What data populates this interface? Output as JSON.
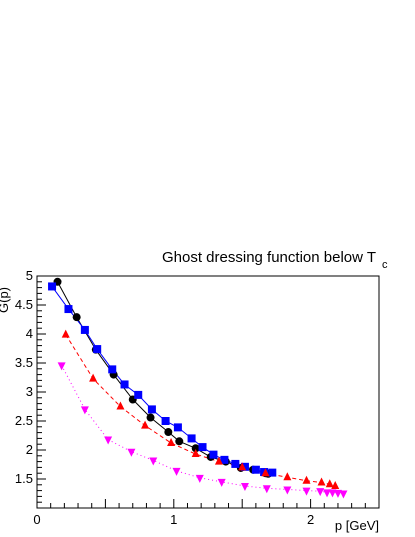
{
  "chart_data": {
    "type": "line",
    "title": "Ghost dressing function below T",
    "title_subscript": "c",
    "xlabel": "p [GeV]",
    "ylabel": "G(p)",
    "xlim": [
      0,
      2.5
    ],
    "ylim": [
      1.0,
      5.0
    ],
    "x_ticks": [
      0,
      1,
      2
    ],
    "y_ticks": [
      1.5,
      2,
      2.5,
      3,
      3.5,
      4,
      4.5,
      5
    ],
    "grid": false,
    "series": [
      {
        "marker": "circle",
        "color": "#000000",
        "line": "solid",
        "points": [
          [
            0.15,
            4.9
          ],
          [
            0.29,
            4.29
          ],
          [
            0.43,
            3.73
          ],
          [
            0.56,
            3.3
          ],
          [
            0.7,
            2.87
          ],
          [
            0.83,
            2.56
          ],
          [
            0.96,
            2.31
          ],
          [
            1.04,
            2.15
          ],
          [
            1.16,
            2.03
          ],
          [
            1.27,
            1.88
          ],
          [
            1.38,
            1.8
          ],
          [
            1.49,
            1.69
          ],
          [
            1.58,
            1.66
          ],
          [
            1.67,
            1.6
          ],
          [
            1.69,
            1.59
          ]
        ]
      },
      {
        "marker": "square",
        "color": "#0000ff",
        "line": "solid",
        "points": [
          [
            0.11,
            4.82
          ],
          [
            0.23,
            4.43
          ],
          [
            0.35,
            4.07
          ],
          [
            0.44,
            3.74
          ],
          [
            0.55,
            3.39
          ],
          [
            0.64,
            3.13
          ],
          [
            0.74,
            2.95
          ],
          [
            0.84,
            2.7
          ],
          [
            0.94,
            2.5
          ],
          [
            1.03,
            2.39
          ],
          [
            1.13,
            2.2
          ],
          [
            1.21,
            2.05
          ],
          [
            1.29,
            1.92
          ],
          [
            1.37,
            1.83
          ],
          [
            1.45,
            1.76
          ],
          [
            1.52,
            1.71
          ],
          [
            1.6,
            1.66
          ],
          [
            1.66,
            1.62
          ],
          [
            1.72,
            1.61
          ]
        ]
      },
      {
        "marker": "triangle-up",
        "color": "#ff0000",
        "line": "dashed",
        "points": [
          [
            0.21,
            3.99
          ],
          [
            0.41,
            3.23
          ],
          [
            0.61,
            2.75
          ],
          [
            0.79,
            2.42
          ],
          [
            0.98,
            2.12
          ],
          [
            1.16,
            1.93
          ],
          [
            1.33,
            1.8
          ],
          [
            1.5,
            1.7
          ],
          [
            1.67,
            1.6
          ],
          [
            1.83,
            1.53
          ],
          [
            1.97,
            1.47
          ],
          [
            2.08,
            1.44
          ],
          [
            2.14,
            1.41
          ],
          [
            2.18,
            1.38
          ]
        ]
      },
      {
        "marker": "triangle-down",
        "color": "#ff00ff",
        "line": "dotted",
        "points": [
          [
            0.18,
            3.46
          ],
          [
            0.35,
            2.7
          ],
          [
            0.52,
            2.18
          ],
          [
            0.69,
            1.97
          ],
          [
            0.85,
            1.82
          ],
          [
            1.02,
            1.64
          ],
          [
            1.19,
            1.52
          ],
          [
            1.35,
            1.45
          ],
          [
            1.52,
            1.38
          ],
          [
            1.68,
            1.34
          ],
          [
            1.83,
            1.32
          ],
          [
            1.97,
            1.3
          ],
          [
            2.07,
            1.29
          ],
          [
            2.12,
            1.27
          ],
          [
            2.16,
            1.27
          ],
          [
            2.2,
            1.26
          ],
          [
            2.24,
            1.25
          ]
        ]
      }
    ]
  }
}
